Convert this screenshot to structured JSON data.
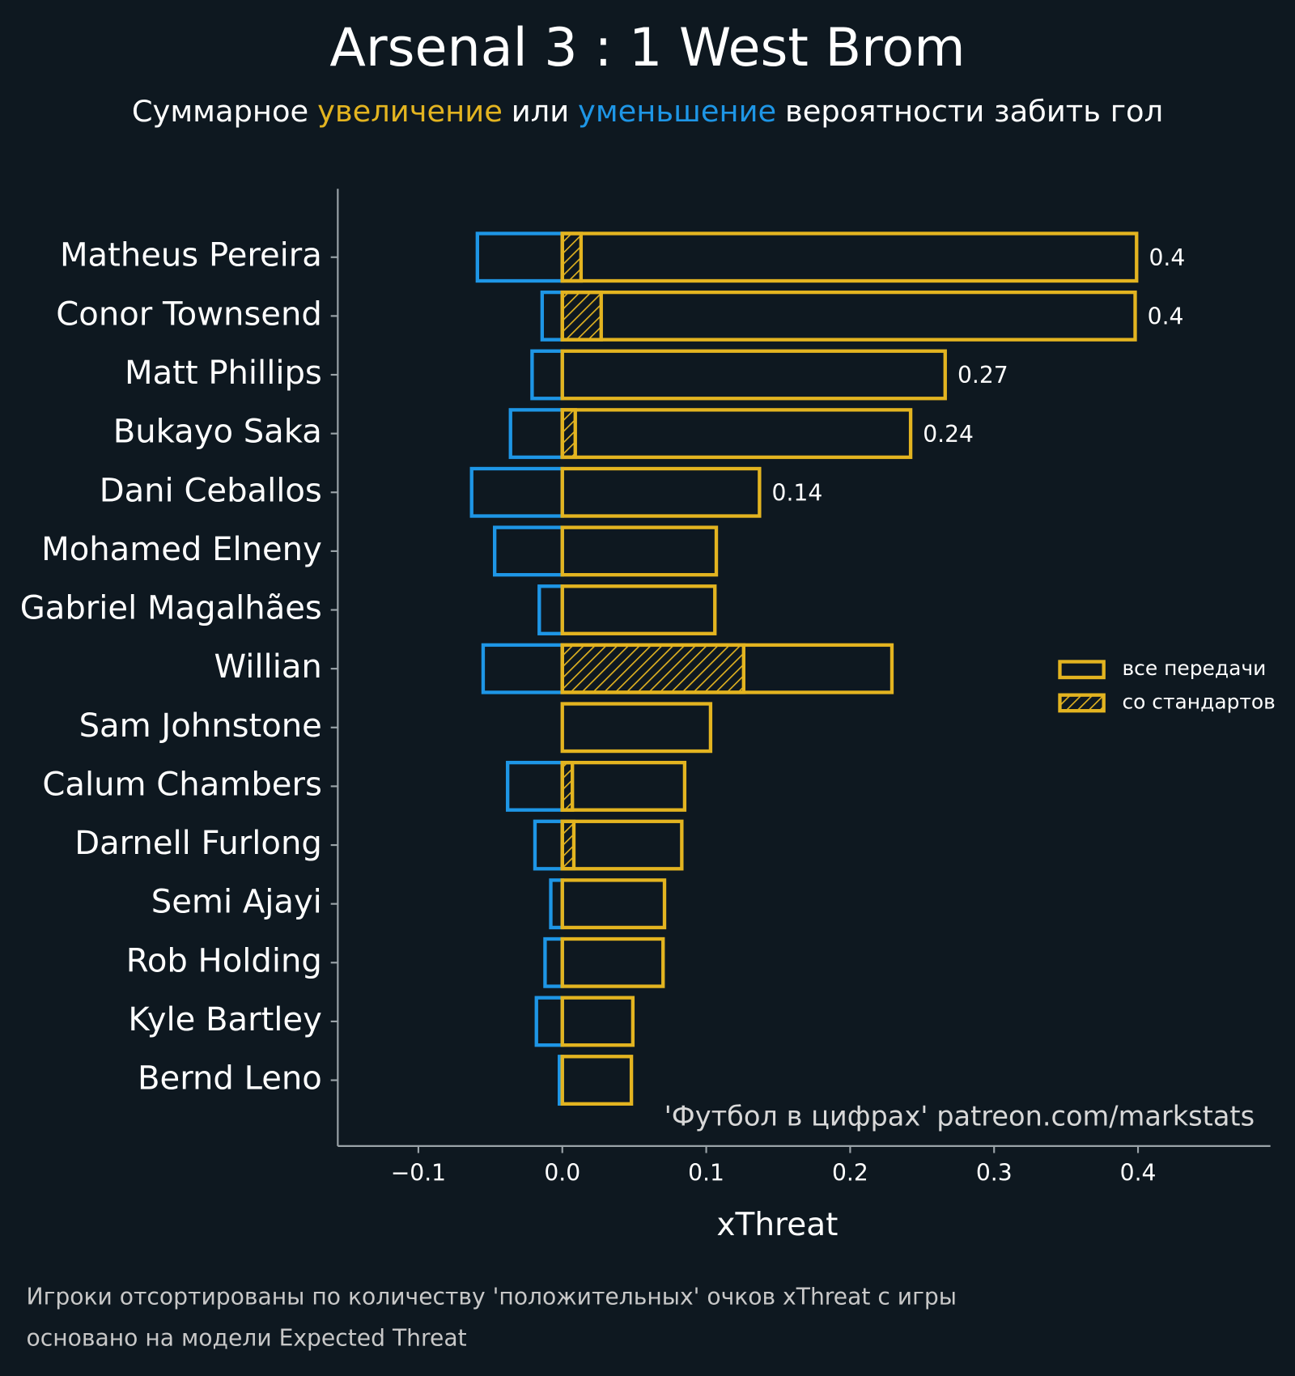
{
  "chart_data": {
    "type": "diverging-bar",
    "title": "Arsenal 3 : 1 West Brom",
    "subtitle_parts": [
      "Суммарное",
      "увеличение",
      "или",
      "уменьшение",
      "вероятности забить гол"
    ],
    "subtitle_colors": [
      null,
      "#e3b420",
      null,
      "#1e96e6",
      null
    ],
    "categories": [
      "Matheus Pereira",
      "Conor Townsend",
      "Matt Phillips",
      "Bukayo Saka",
      "Dani Ceballos",
      "Mohamed Elneny",
      "Gabriel Magalhães",
      "Willian",
      "Sam Johnstone",
      "Calum Chambers",
      "Darnell Furlong",
      "Semi Ajayi",
      "Rob Holding",
      "Kyle Bartley",
      "Bernd Leno"
    ],
    "series": [
      {
        "name": "все передачи",
        "color": "#e3b420",
        "values": [
          0.399,
          0.398,
          0.266,
          0.242,
          0.137,
          0.107,
          0.106,
          0.229,
          0.103,
          0.085,
          0.083,
          0.071,
          0.07,
          0.049,
          0.048
        ],
        "value_labels": [
          "0.4",
          "0.4",
          "0.27",
          "0.24",
          "0.14",
          null,
          null,
          null,
          null,
          null,
          null,
          null,
          null,
          null,
          null
        ]
      },
      {
        "name": "со стандартов",
        "color": "#e3b420",
        "hatch": true,
        "values": [
          0.013,
          0.027,
          0,
          0.009,
          0,
          0,
          0,
          0.126,
          0,
          0.007,
          0.008,
          0,
          0,
          0,
          0
        ]
      },
      {
        "color": "#1e96e6",
        "values": [
          -0.059,
          -0.014,
          -0.021,
          -0.036,
          -0.063,
          -0.047,
          -0.016,
          -0.055,
          0,
          -0.038,
          -0.019,
          -0.008,
          -0.012,
          -0.018,
          -0.002
        ]
      }
    ],
    "xlabel": "xThreat",
    "xlim": [
      -0.156,
      0.492
    ],
    "xticks": [
      {
        "value": -0.1,
        "label": "−0.1"
      },
      {
        "value": 0,
        "label": "0.0"
      },
      0.1,
      0.2,
      0.3,
      0.4
    ],
    "watermark": "'Футбол в цифрах' patreon.com/markstats",
    "notes": [
      "Игроки отсортированы по количеству 'положительных' очков xThreat с игры",
      "основано на модели Expected Threat"
    ]
  }
}
